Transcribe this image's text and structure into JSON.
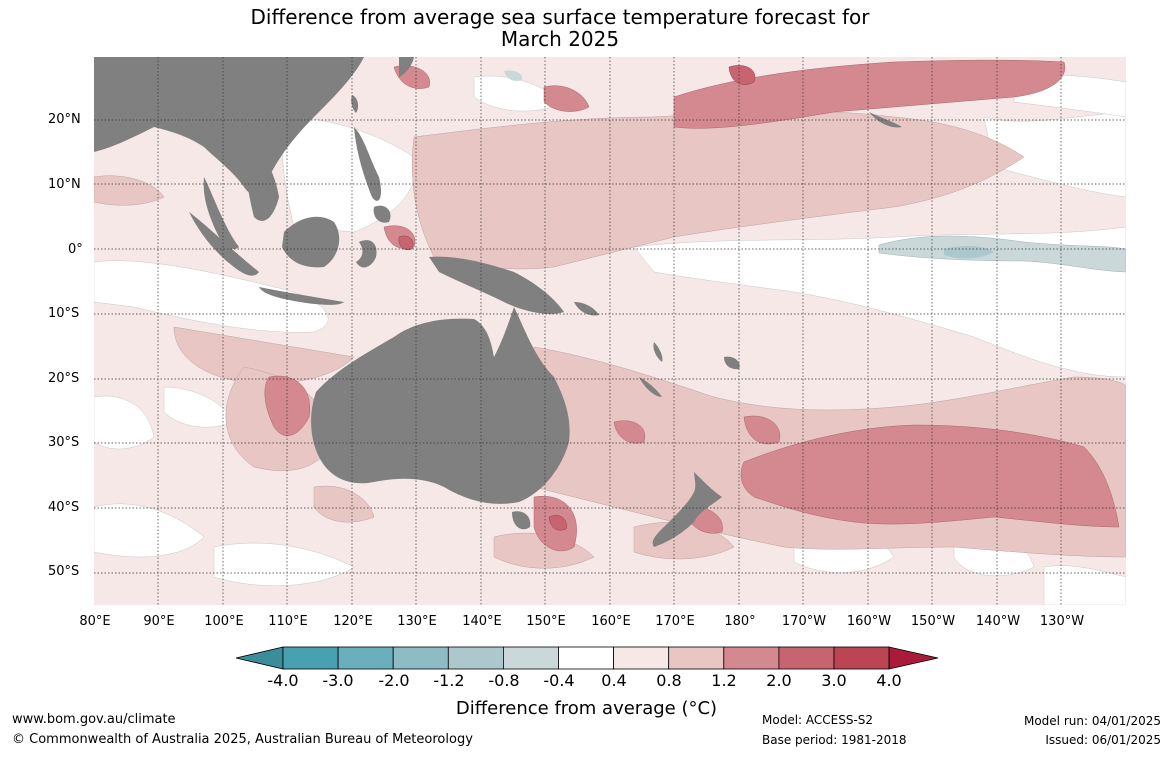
{
  "title": {
    "line1": "Difference from average sea surface temperature forecast for",
    "line2": "March 2025"
  },
  "map": {
    "lat_labels": [
      "20°N",
      "10°N",
      "0°",
      "10°S",
      "20°S",
      "30°S",
      "40°S",
      "50°S"
    ],
    "lon_labels": [
      "80°E",
      "90°E",
      "100°E",
      "110°E",
      "120°E",
      "130°E",
      "140°E",
      "150°E",
      "160°E",
      "170°E",
      "180°",
      "170°W",
      "160°W",
      "150°W",
      "140°W",
      "130°W"
    ],
    "land_color": "#808080"
  },
  "colorbar": {
    "labels": [
      "-4.0",
      "-3.0",
      "-2.0",
      "-1.2",
      "-0.8",
      "-0.4",
      "0.4",
      "0.8",
      "1.2",
      "2.0",
      "3.0",
      "4.0"
    ],
    "colors": [
      "#3a8d99",
      "#48a1b0",
      "#6aafbc",
      "#8ebcc5",
      "#adc8cd",
      "#cbd8da",
      "#ffffff",
      "#f5e8e7",
      "#e8c6c3",
      "#d4888f",
      "#c86470",
      "#bb4552",
      "#a81c3a"
    ],
    "title": "Difference from average (°C)"
  },
  "footer": {
    "website": "www.bom.gov.au/climate",
    "copyright": "© Commonwealth of Australia 2025, Australian Bureau of Meteorology",
    "model": "Model: ACCESS-S2",
    "base_period": "Base period: 1981-2018",
    "model_run": "Model run: 04/01/2025",
    "issued": "Issued: 06/01/2025"
  }
}
